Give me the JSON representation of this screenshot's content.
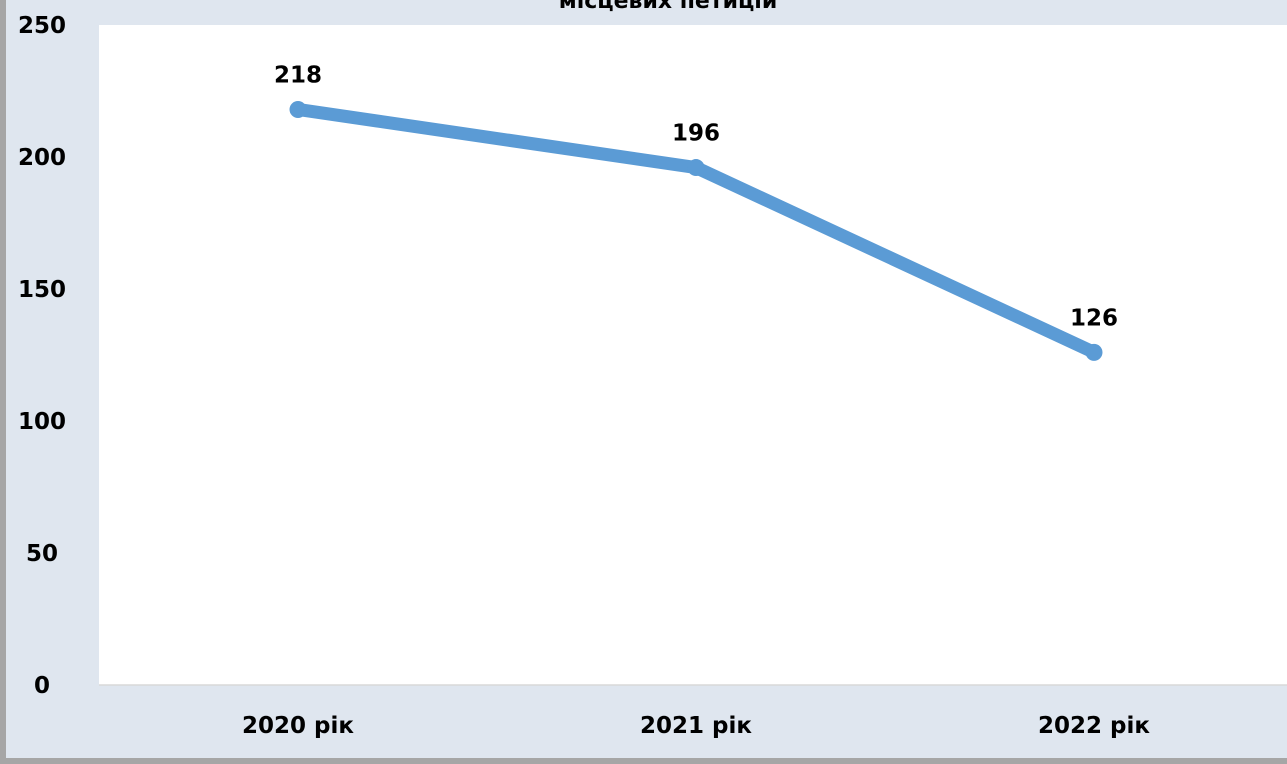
{
  "chart_data": {
    "type": "line",
    "title": "місцевих петицій",
    "categories": [
      "2020 рік",
      "2021 рік",
      "2022 рік"
    ],
    "series": [
      {
        "values": [
          218,
          196,
          126
        ],
        "color": "#5b9bd5"
      }
    ],
    "ylim": [
      0,
      250
    ],
    "yticks": [
      0,
      50,
      100,
      150,
      200,
      250
    ],
    "data_labels": true,
    "grid": false,
    "legend": "none"
  }
}
